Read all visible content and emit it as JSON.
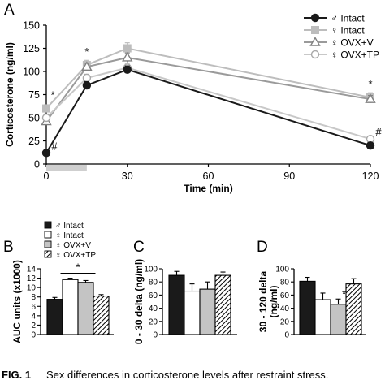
{
  "caption": {
    "label": "FIG. 1",
    "text": "Sex differences in corticosterone levels after restraint stress."
  },
  "colors": {
    "male_intact": "#1a1a1a",
    "female_intact": "#bdbdbd",
    "ovx_v": "#9a9a9a",
    "ovx_tp": "#c8c8c8",
    "restraint_bar": "#cfcfcf",
    "bar_male": "#1a1a1a",
    "bar_female": "#ffffff",
    "bar_ovxv": "#c4c4c4",
    "bar_ovxtp": "hatched"
  },
  "chart_data": [
    {
      "panel": "A",
      "type": "line",
      "xlabel": "Time (min)",
      "ylabel": "Corticosterone (ng/ml)",
      "xlim": [
        0,
        120
      ],
      "ylim": [
        0,
        150
      ],
      "xticks": [
        0,
        30,
        60,
        90,
        120
      ],
      "yticks": [
        0,
        25,
        50,
        75,
        100,
        125,
        150
      ],
      "x": [
        0,
        15,
        30,
        120
      ],
      "restraint_period": [
        0,
        15
      ],
      "legend_position": "top-right",
      "series": [
        {
          "name": "♂ Intact",
          "marker": "filled-circle",
          "values": [
            12,
            85,
            102,
            20
          ],
          "errors": [
            2,
            4,
            4,
            3
          ]
        },
        {
          "name": "♀ Intact",
          "marker": "filled-square",
          "values": [
            60,
            107,
            125,
            72
          ],
          "errors": [
            4,
            5,
            6,
            5
          ]
        },
        {
          "name": "♀ OVX+V",
          "marker": "open-triangle",
          "values": [
            46,
            105,
            115,
            70
          ],
          "errors": [
            4,
            4,
            5,
            4
          ]
        },
        {
          "name": "♀ OVX+TP",
          "marker": "open-circle",
          "values": [
            50,
            93,
            104,
            27
          ],
          "errors": [
            4,
            4,
            4,
            3
          ]
        }
      ],
      "annotations": [
        {
          "x": 0,
          "y": 12,
          "text": "#"
        },
        {
          "x": 0,
          "y": 60,
          "text": "*"
        },
        {
          "x": 15,
          "y": 107,
          "text": "*"
        },
        {
          "x": 120,
          "y": 72,
          "text": "*"
        },
        {
          "x": 120,
          "y": 27,
          "text": "#"
        }
      ]
    },
    {
      "panel": "B",
      "type": "bar",
      "ylabel": "AUC units (x1000)",
      "ylim": [
        0,
        14
      ],
      "yticks": [
        0,
        2,
        4,
        6,
        8,
        10,
        12,
        14
      ],
      "categories": [
        "♂ Intact",
        "♀ Intact",
        "♀ OVX+V",
        "♀ OVX+TP"
      ],
      "values": [
        7.5,
        11.7,
        11.1,
        8.2
      ],
      "errors": [
        0.4,
        0.3,
        0.4,
        0.3
      ],
      "annotations": [
        {
          "between": [
            "♀ Intact",
            "♀ OVX+V"
          ],
          "text": "*"
        }
      ],
      "legend_position": "top"
    },
    {
      "panel": "C",
      "type": "bar",
      "ylabel": "0 - 30 delta (ng/ml)",
      "ylim": [
        0,
        100
      ],
      "yticks": [
        0,
        20,
        40,
        60,
        80,
        100
      ],
      "categories": [
        "♂ Intact",
        "♀ Intact",
        "♀ OVX+V",
        "♀ OVX+TP"
      ],
      "values": [
        90,
        66,
        69,
        90
      ],
      "errors": [
        6,
        11,
        11,
        5
      ]
    },
    {
      "panel": "D",
      "type": "bar",
      "ylabel": "30 - 120 delta (ng/ml)",
      "ylim": [
        0,
        100
      ],
      "yticks": [
        0,
        20,
        40,
        60,
        80,
        100
      ],
      "categories": [
        "♂ Intact",
        "♀ Intact",
        "♀ OVX+V",
        "♀ OVX+TP"
      ],
      "values": [
        81,
        53,
        46,
        77
      ],
      "errors": [
        6,
        10,
        8,
        8
      ],
      "annotations": [
        {
          "category": "♀ OVX+V",
          "text": "*"
        }
      ]
    }
  ]
}
